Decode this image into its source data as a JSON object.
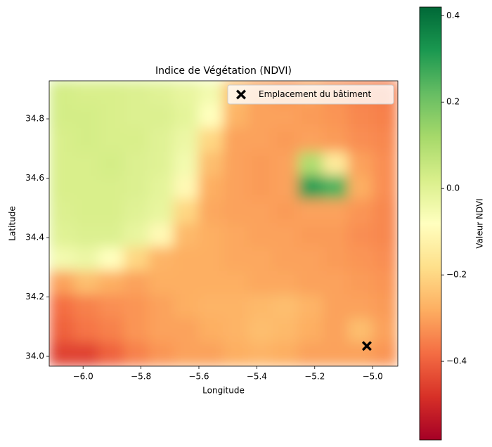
{
  "chart_data": {
    "type": "heatmap",
    "title": "Indice de Végétation (NDVI)",
    "xlabel": "Longitude",
    "ylabel": "Latitude",
    "colormap": "RdYlGn",
    "xlim": [
      -6.117,
      -4.913
    ],
    "ylim": [
      33.967,
      34.928
    ],
    "xticks": [
      {
        "value": -6.0,
        "label": "−6.0"
      },
      {
        "value": -5.8,
        "label": "−5.8"
      },
      {
        "value": -5.6,
        "label": "−5.6"
      },
      {
        "value": -5.4,
        "label": "−5.4"
      },
      {
        "value": -5.2,
        "label": "−5.2"
      },
      {
        "value": -5.0,
        "label": "−5.0"
      }
    ],
    "yticks": [
      {
        "value": 34.0,
        "label": "34.0"
      },
      34.2,
      34.4,
      34.6,
      34.8
    ],
    "z": [
      [
        0.03,
        0.02,
        0.02,
        0.01,
        0.0,
        -0.02,
        -0.05,
        -0.25,
        -0.3,
        -0.32,
        -0.3,
        -0.33,
        -0.35,
        -0.36
      ],
      [
        0.03,
        0.03,
        0.02,
        0.01,
        0.01,
        -0.01,
        -0.08,
        -0.27,
        -0.3,
        -0.3,
        -0.31,
        -0.32,
        -0.34,
        -0.35
      ],
      [
        0.02,
        0.03,
        0.02,
        0.02,
        0.0,
        -0.03,
        -0.2,
        -0.3,
        -0.3,
        -0.31,
        -0.3,
        -0.31,
        -0.33,
        -0.34
      ],
      [
        0.02,
        0.02,
        0.03,
        0.01,
        0.0,
        -0.05,
        -0.25,
        -0.3,
        -0.31,
        -0.3,
        0.1,
        -0.15,
        -0.3,
        -0.33
      ],
      [
        0.02,
        0.02,
        0.02,
        0.01,
        -0.01,
        -0.1,
        -0.28,
        -0.3,
        -0.31,
        -0.3,
        0.3,
        0.25,
        -0.28,
        -0.33
      ],
      [
        0.01,
        0.02,
        0.02,
        0.0,
        -0.02,
        -0.2,
        -0.29,
        -0.3,
        -0.3,
        -0.31,
        -0.3,
        -0.3,
        -0.32,
        -0.34
      ],
      [
        0.0,
        0.01,
        0.01,
        -0.02,
        -0.1,
        -0.26,
        -0.28,
        -0.29,
        -0.3,
        -0.3,
        -0.31,
        -0.31,
        -0.33,
        -0.34
      ],
      [
        -0.05,
        -0.03,
        -0.08,
        -0.2,
        -0.27,
        -0.28,
        -0.28,
        -0.29,
        -0.29,
        -0.3,
        -0.3,
        -0.31,
        -0.32,
        -0.33
      ],
      [
        -0.3,
        -0.25,
        -0.28,
        -0.3,
        -0.28,
        -0.28,
        -0.28,
        -0.28,
        -0.29,
        -0.29,
        -0.3,
        -0.3,
        -0.31,
        -0.32
      ],
      [
        -0.38,
        -0.35,
        -0.33,
        -0.32,
        -0.3,
        -0.28,
        -0.27,
        -0.27,
        -0.26,
        -0.25,
        -0.27,
        -0.3,
        -0.3,
        -0.31
      ],
      [
        -0.4,
        -0.37,
        -0.35,
        -0.32,
        -0.3,
        -0.3,
        -0.28,
        -0.27,
        -0.25,
        -0.26,
        -0.28,
        -0.3,
        -0.25,
        -0.3
      ],
      [
        -0.45,
        -0.45,
        -0.4,
        -0.35,
        -0.32,
        -0.3,
        -0.3,
        -0.28,
        -0.27,
        -0.28,
        -0.3,
        -0.3,
        -0.3,
        -0.32
      ]
    ],
    "series": [
      {
        "name": "Emplacement du bâtiment",
        "color": "#000000",
        "marker": "X",
        "x": [
          -5.02
        ],
        "y": [
          34.035
        ]
      }
    ],
    "legend": "upper right",
    "colorbar": {
      "label": "Valeur NDVI",
      "clim": [
        -0.582,
        0.42
      ],
      "ticks": [
        {
          "value": -0.4,
          "label": "−0.4"
        },
        {
          "value": -0.2,
          "label": "−0.2"
        },
        {
          "value": 0.0,
          "label": "0.0"
        },
        0.2,
        0.4
      ]
    }
  }
}
